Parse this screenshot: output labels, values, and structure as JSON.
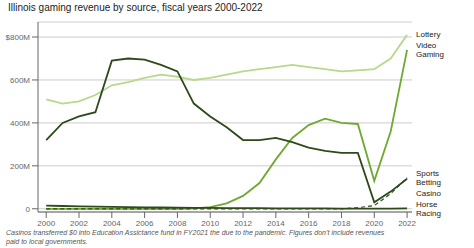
{
  "chart_data": {
    "type": "line",
    "title": "Illinois gaming revenue by source, fiscal years 2000-2022",
    "footnote": "Casinos transferred $0 into Education Assictance fund in FY2021 the due to the pandemic. Figures don’t include revenues\npaid to local governments.",
    "x": [
      2000,
      2001,
      2002,
      2003,
      2004,
      2005,
      2006,
      2007,
      2008,
      2009,
      2010,
      2011,
      2012,
      2013,
      2014,
      2015,
      2016,
      2017,
      2018,
      2019,
      2020,
      2021,
      2022
    ],
    "series": [
      {
        "name": "Lottery",
        "color": "#b8d88b",
        "line_style": "solid",
        "values": [
          510,
          490,
          500,
          530,
          575,
          590,
          610,
          625,
          615,
          600,
          610,
          625,
          640,
          650,
          660,
          670,
          660,
          650,
          640,
          645,
          650,
          700,
          810
        ]
      },
      {
        "name": "Video\nGaming",
        "color": "#6fa832",
        "line_style": "solid",
        "values": [
          0,
          0,
          0,
          0,
          0,
          0,
          0,
          0,
          0,
          2,
          8,
          25,
          60,
          120,
          230,
          330,
          390,
          420,
          400,
          395,
          130,
          360,
          740
        ]
      },
      {
        "name": "Casino",
        "color": "#2d4a1a",
        "line_style": "solid",
        "values": [
          320,
          400,
          430,
          450,
          690,
          700,
          695,
          670,
          640,
          490,
          430,
          380,
          320,
          320,
          330,
          310,
          285,
          270,
          260,
          260,
          30,
          80,
          140
        ]
      },
      {
        "name": "Sports\nBetting",
        "color": "#2d4a1a",
        "line_style": "dashed",
        "values": [
          0,
          0,
          0,
          0,
          0,
          0,
          0,
          0,
          0,
          0,
          0,
          0,
          0,
          0,
          0,
          0,
          0,
          0,
          0,
          5,
          15,
          70,
          145
        ]
      },
      {
        "name": "Horse\nRacing",
        "color": "#2d4a1a",
        "line_style": "solid",
        "values": [
          15,
          13,
          11,
          10,
          9,
          8,
          7,
          6,
          5,
          4,
          4,
          3,
          3,
          3,
          2,
          2,
          2,
          2,
          1,
          1,
          1,
          1,
          2
        ]
      }
    ],
    "xlim": [
      1999.5,
      2022.3
    ],
    "xticks": [
      2000,
      2002,
      2004,
      2006,
      2008,
      2010,
      2012,
      2014,
      2016,
      2018,
      2020,
      2022
    ],
    "ylim": [
      -15,
      870
    ],
    "yticks": [
      0,
      {
        "value": 200,
        "label": "200M"
      },
      {
        "value": 400,
        "label": "400M"
      },
      {
        "value": 600,
        "label": "600M"
      },
      {
        "value": 800,
        "label": "$800M"
      }
    ],
    "grid": true
  }
}
